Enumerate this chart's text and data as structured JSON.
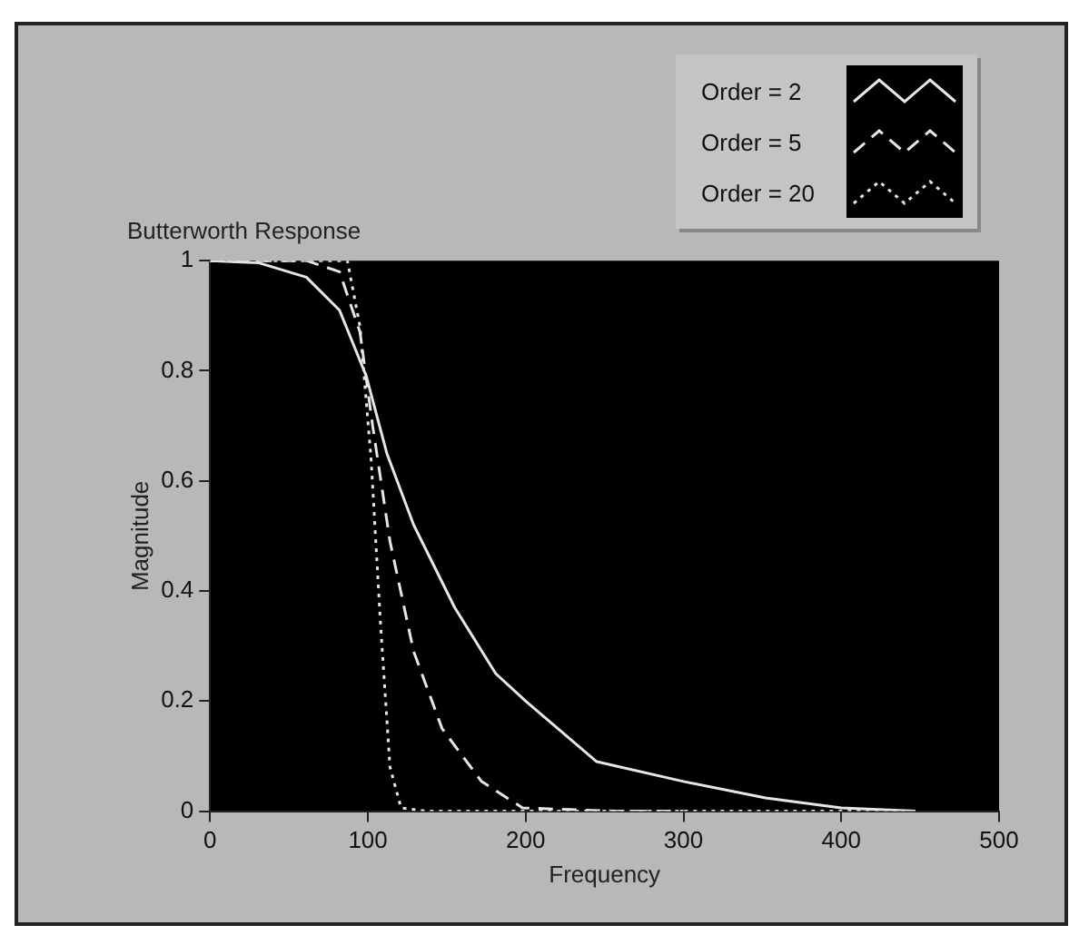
{
  "chart_data": {
    "type": "line",
    "title": "Butterworth Response",
    "xlabel": "Frequency",
    "ylabel": "Magnitude",
    "xlim": [
      0,
      500
    ],
    "xticks": [
      0,
      100,
      200,
      300,
      400,
      500
    ],
    "ylim": [
      0,
      1
    ],
    "yticks": [
      0,
      0.2,
      0.4,
      0.6,
      0.8,
      1
    ],
    "grid": false,
    "legend": "top right",
    "marker": "none",
    "series": [
      {
        "name": "Order = 2",
        "color": "#e6e6e6",
        "line_style": "solid",
        "x": [
          0,
          31,
          61,
          82,
          99,
          112,
          129,
          155,
          181,
          200,
          245,
          300,
          352,
          400,
          447
        ],
        "values": [
          1,
          0.996,
          0.97,
          0.91,
          0.79,
          0.65,
          0.52,
          0.37,
          0.25,
          0.2,
          0.09,
          0.054,
          0.024,
          0.006,
          0
        ]
      },
      {
        "name": "Order = 5",
        "color": "#e6e6e6",
        "line_style": "dashed",
        "x": [
          0,
          61,
          82,
          95,
          103,
          114,
          129,
          147,
          172,
          198,
          258,
          300
        ],
        "values": [
          1,
          1,
          0.98,
          0.87,
          0.7,
          0.49,
          0.29,
          0.15,
          0.054,
          0.006,
          0,
          0
        ]
      },
      {
        "name": "Order = 20",
        "color": "#e6e6e6",
        "line_style": "dotted",
        "x": [
          0,
          87,
          95,
          102,
          108,
          114,
          121,
          138,
          440
        ],
        "values": [
          1,
          1,
          0.88,
          0.64,
          0.34,
          0.08,
          0.006,
          0,
          0
        ]
      }
    ]
  }
}
